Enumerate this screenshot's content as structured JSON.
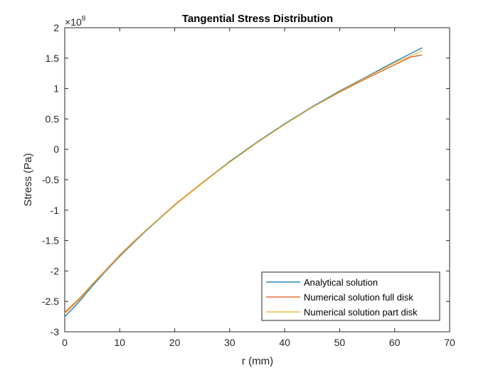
{
  "chart_data": {
    "type": "line",
    "title": "Tangential Stress Distribution",
    "xlabel": "r (mm)",
    "ylabel": "Stress (Pa)",
    "y_exponent_label": "×10",
    "y_exponent_power": "8",
    "xlim": [
      0,
      70
    ],
    "ylim": [
      -3,
      2
    ],
    "x_ticks": [
      "0",
      "10",
      "20",
      "30",
      "40",
      "50",
      "60",
      "70"
    ],
    "y_ticks": [
      "-3",
      "-2.5",
      "-2",
      "-1.5",
      "-1",
      "-0.5",
      "0",
      "0.5",
      "1",
      "1.5",
      "2"
    ],
    "grid": false,
    "legend_position": "bottom-right",
    "series": [
      {
        "name": "Analytical solution",
        "color": "#0072BD",
        "x": [
          0,
          2.5,
          5,
          7.5,
          10,
          12.5,
          15,
          20,
          25,
          30,
          35,
          40,
          45,
          50,
          55,
          60,
          65
        ],
        "y": [
          -2.75,
          -2.52,
          -2.25,
          -2.0,
          -1.76,
          -1.54,
          -1.32,
          -0.92,
          -0.55,
          -0.2,
          0.12,
          0.42,
          0.7,
          0.96,
          1.2,
          1.44,
          1.67
        ]
      },
      {
        "name": "Numerical solution full disk",
        "color": "#D95319",
        "x": [
          0,
          2.5,
          5,
          7.5,
          10,
          12.5,
          15,
          20,
          25,
          30,
          35,
          40,
          45,
          50,
          55,
          60,
          63,
          65
        ],
        "y": [
          -2.68,
          -2.47,
          -2.22,
          -1.98,
          -1.74,
          -1.52,
          -1.31,
          -0.91,
          -0.55,
          -0.21,
          0.11,
          0.41,
          0.69,
          0.94,
          1.17,
          1.39,
          1.52,
          1.55
        ]
      },
      {
        "name": "Numerical solution part disk",
        "color": "#EDB120",
        "x": [
          0,
          2.5,
          5,
          7.5,
          10,
          12.5,
          15,
          20,
          25,
          30,
          35,
          40,
          45,
          50,
          55,
          60,
          65
        ],
        "y": [
          -2.7,
          -2.49,
          -2.23,
          -1.99,
          -1.75,
          -1.53,
          -1.31,
          -0.92,
          -0.56,
          -0.21,
          0.11,
          0.41,
          0.69,
          0.95,
          1.19,
          1.42,
          1.62
        ]
      }
    ]
  }
}
